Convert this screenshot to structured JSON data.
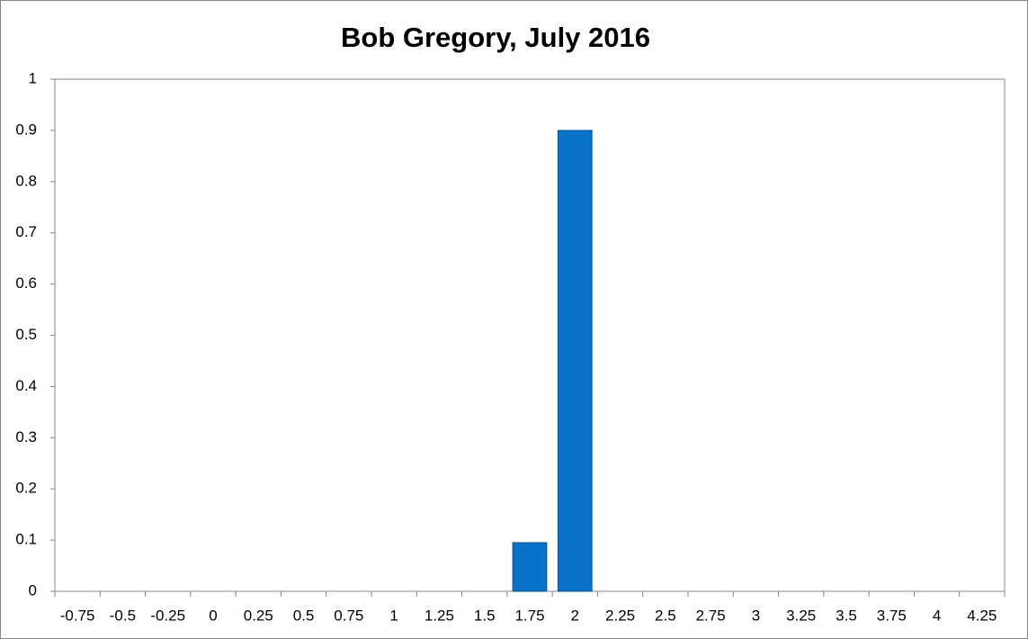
{
  "chart_data": {
    "type": "bar",
    "title": "Bob Gregory, July 2016",
    "categories": [
      "-0.75",
      "-0.5",
      "-0.25",
      "0",
      "0.25",
      "0.5",
      "0.75",
      "1",
      "1.25",
      "1.5",
      "1.75",
      "2",
      "2.25",
      "2.5",
      "2.75",
      "3",
      "3.25",
      "3.5",
      "3.75",
      "4",
      "4.25"
    ],
    "values": [
      0,
      0,
      0,
      0,
      0,
      0,
      0,
      0,
      0,
      0,
      0.095,
      0.9,
      0,
      0,
      0,
      0,
      0,
      0,
      0,
      0,
      0
    ],
    "color": "#0a72c8",
    "ylim": [
      0,
      1
    ],
    "yticks": [
      0,
      0.1,
      0.2,
      0.3,
      0.4,
      0.5,
      0.6,
      0.7,
      0.8,
      0.9,
      1
    ],
    "grid": false
  }
}
